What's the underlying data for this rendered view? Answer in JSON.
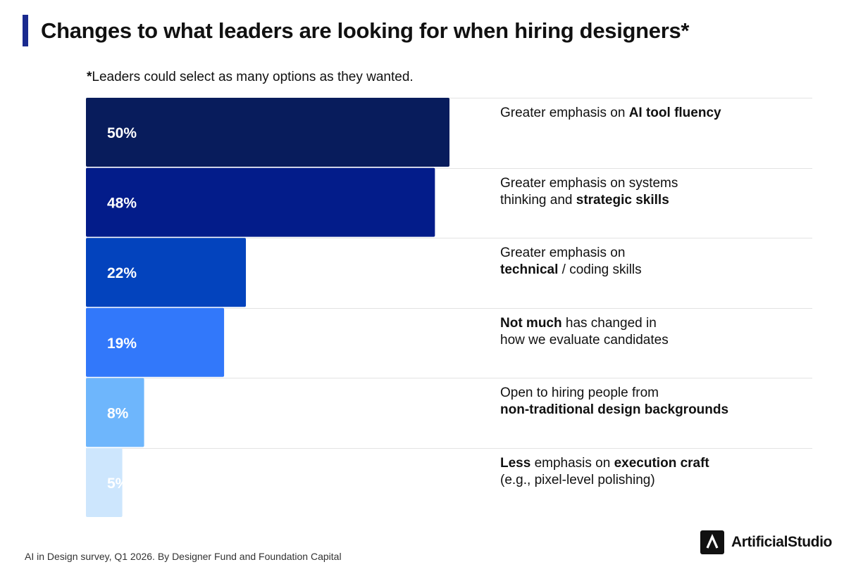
{
  "title": "Changes to what leaders are looking for when hiring designers*",
  "subtitle": {
    "star": "*",
    "text": "Leaders could select as many options as they wanted."
  },
  "chart_data": {
    "type": "bar",
    "orientation": "horizontal",
    "title": "Changes to what leaders are looking for when hiring designers*",
    "categories": [
      "Greater emphasis on AI tool fluency",
      "Greater emphasis on systems thinking and strategic skills",
      "Greater emphasis on technical / coding skills",
      "Not much has changed in how we evaluate candidates",
      "Open to hiring people from non-traditional design backgrounds",
      "Less emphasis on execution craft (e.g., pixel-level polishing)"
    ],
    "values": [
      50,
      48,
      22,
      19,
      8,
      5
    ],
    "value_labels": [
      "50%",
      "48%",
      "22%",
      "19%",
      "8%",
      "5%"
    ],
    "label_lines": [
      [
        [
          {
            "t": "Greater emphasis on ",
            "b": false
          },
          {
            "t": "AI tool fluency",
            "b": true
          }
        ]
      ],
      [
        [
          {
            "t": "Greater emphasis on systems",
            "b": false
          }
        ],
        [
          {
            "t": "thinking and ",
            "b": false
          },
          {
            "t": "strategic skills",
            "b": true
          }
        ]
      ],
      [
        [
          {
            "t": "Greater emphasis on",
            "b": false
          }
        ],
        [
          {
            "t": "technical",
            "b": true
          },
          {
            "t": " / coding skills",
            "b": false
          }
        ]
      ],
      [
        [
          {
            "t": "Not much",
            "b": true
          },
          {
            "t": " has changed in",
            "b": false
          }
        ],
        [
          {
            "t": "how we evaluate candidates",
            "b": false
          }
        ]
      ],
      [
        [
          {
            "t": "Open to hiring people from",
            "b": false
          }
        ],
        [
          {
            "t": "non-traditional design backgrounds",
            "b": true
          }
        ]
      ],
      [
        [
          {
            "t": "Less",
            "b": true
          },
          {
            "t": " emphasis on ",
            "b": false
          },
          {
            "t": "execution craft",
            "b": true
          }
        ],
        [
          {
            "t": "(e.g., pixel-level polishing)",
            "b": false
          }
        ]
      ]
    ],
    "colors": [
      "#081c5c",
      "#031c8a",
      "#0343bd",
      "#3278fa",
      "#6eb6fc",
      "#cde6fd"
    ],
    "value_label_color": "#ffffff",
    "xlim": [
      0,
      50
    ],
    "grid": false,
    "legend": "none",
    "unit": "%"
  },
  "footer": "AI in Design survey, Q1 2026. By Designer Fund and Foundation Capital",
  "logo": {
    "name": "ArtificialStudio",
    "icon": "caret-logo-icon",
    "mark_color": "#111111"
  }
}
